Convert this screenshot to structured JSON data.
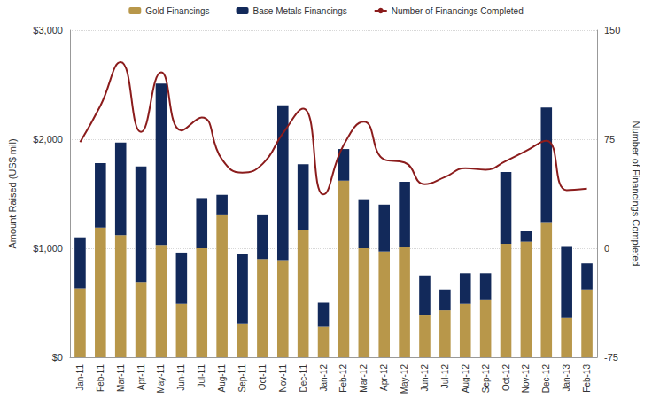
{
  "chart_data": {
    "type": "bar",
    "stacked": true,
    "grid": true,
    "legend": "top",
    "categories": [
      "Jan-11",
      "Feb-11",
      "Mar-11",
      "Apr-11",
      "May-11",
      "Jun-11",
      "Jul-11",
      "Aug-11",
      "Sep-11",
      "Oct-11",
      "Nov-11",
      "Dec-11",
      "Jan-12",
      "Feb-12",
      "Mar-12",
      "Apr-12",
      "May-12",
      "Jun-12",
      "Jul-12",
      "Aug-12",
      "Sep-12",
      "Oct-12",
      "Nov-12",
      "Dec-12",
      "Jan-13",
      "Feb-13"
    ],
    "y_label": "Amount Raised (US$ mil)",
    "y2_label": "Number of Financings Completed",
    "ylim": [
      0,
      3000
    ],
    "yticks": [
      {
        "value": 0,
        "label": "$0"
      },
      {
        "value": 1000,
        "label": "$1,000"
      },
      {
        "value": 2000,
        "label": "$2,000"
      },
      {
        "value": 3000,
        "label": "$3,000"
      }
    ],
    "y2lim": [
      -75,
      150
    ],
    "y2ticks": [
      -75,
      0,
      75,
      150
    ],
    "series": [
      {
        "name": "Gold Financings",
        "type": "bar",
        "color": "#b8974a",
        "values": [
          630,
          1190,
          1120,
          690,
          1030,
          490,
          1000,
          1310,
          310,
          900,
          890,
          1170,
          280,
          1620,
          1000,
          970,
          1010,
          390,
          430,
          490,
          530,
          1040,
          1060,
          1240,
          360,
          620
        ]
      },
      {
        "name": "Base Metals Financings",
        "type": "bar",
        "color": "#12295a",
        "values": [
          470,
          590,
          850,
          1060,
          1480,
          470,
          460,
          180,
          640,
          410,
          1420,
          600,
          220,
          290,
          450,
          430,
          600,
          360,
          190,
          280,
          240,
          660,
          100,
          1050,
          660,
          240
        ]
      },
      {
        "name": "Number of Financings Completed",
        "type": "line",
        "axis": "y2",
        "color": "#8b1c1c",
        "line_style": "smooth",
        "values": [
          73,
          98,
          128,
          80,
          121,
          81,
          90,
          61,
          52,
          58,
          79,
          96,
          37,
          71,
          87,
          61,
          59,
          44,
          49,
          55,
          54,
          60,
          67,
          74,
          40,
          41
        ]
      }
    ]
  }
}
